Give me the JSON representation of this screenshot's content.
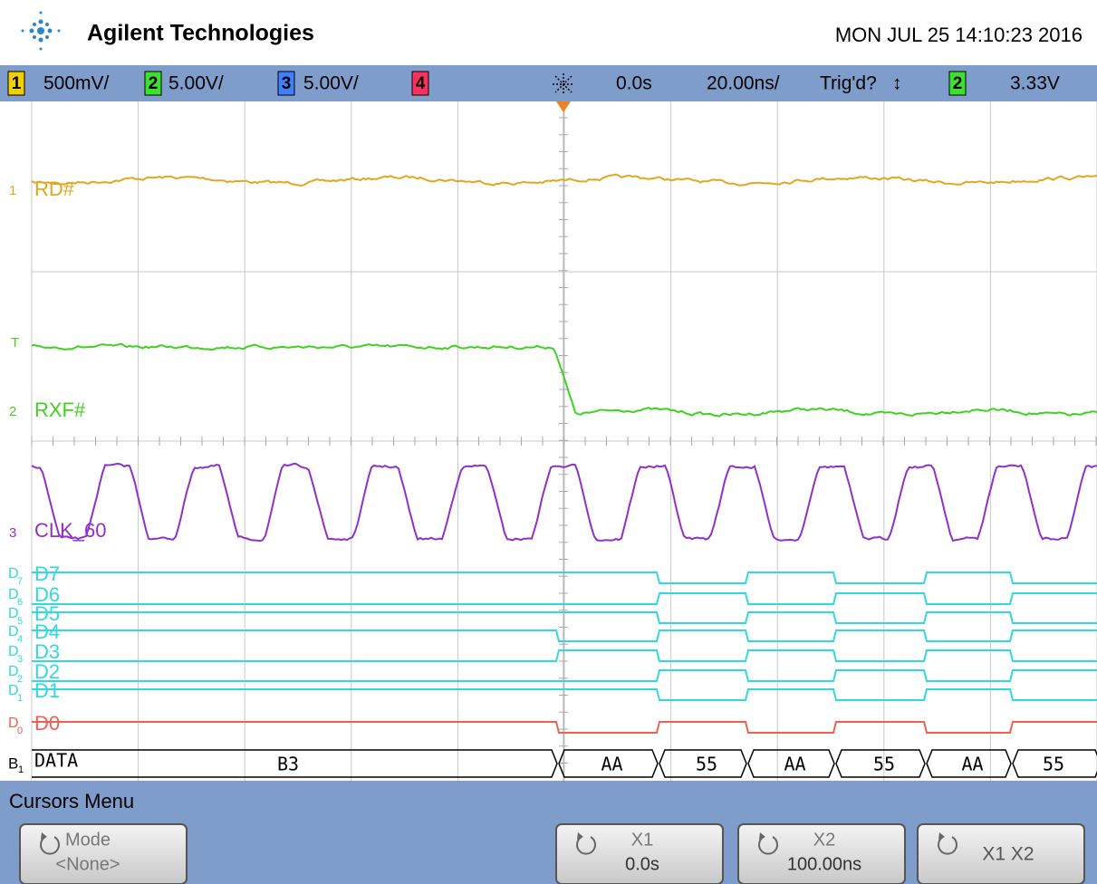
{
  "header": {
    "brand": "Agilent Technologies",
    "datetime": "MON JUL 25 14:10:23 2016"
  },
  "status_bar": {
    "ch1": "1",
    "ch1_scale": "500mV/",
    "ch2": "2",
    "ch2_scale": "5.00V/",
    "ch3": "3",
    "ch3_scale": "5.00V/",
    "ch4": "4",
    "time_offset": "0.0s",
    "time_scale": "20.00ns/",
    "trigger_status": "Trig'd?",
    "trigger_slope": "↕",
    "trigger_source": "2",
    "trigger_level": "3.33V"
  },
  "channels": {
    "rd": {
      "marker": "1",
      "label": "RD#"
    },
    "trig": "T",
    "rxf": {
      "marker": "2",
      "label": "RXF#"
    },
    "clk": {
      "marker": "3",
      "label": "CLK_60"
    }
  },
  "digital": {
    "lanes": [
      {
        "marker": "D",
        "sub": "7",
        "label": "D7"
      },
      {
        "marker": "D",
        "sub": "6",
        "label": "D6"
      },
      {
        "marker": "D",
        "sub": "5",
        "label": "D5"
      },
      {
        "marker": "D",
        "sub": "4",
        "label": "D4"
      },
      {
        "marker": "D",
        "sub": "3",
        "label": "D3"
      },
      {
        "marker": "D",
        "sub": "2",
        "label": "D2"
      },
      {
        "marker": "D",
        "sub": "1",
        "label": "D1"
      },
      {
        "marker": "D",
        "sub": "0",
        "label": "D0"
      }
    ]
  },
  "bus": {
    "marker": "B",
    "sub": "1",
    "label": "DATA",
    "values": [
      "B3",
      "AA",
      "55",
      "AA",
      "55",
      "AA",
      "55"
    ]
  },
  "menu": {
    "title": "Cursors Menu",
    "buttons": [
      {
        "label": "Mode",
        "value": "<None>"
      },
      {
        "label": "X1",
        "value": "0.0s"
      },
      {
        "label": "X2",
        "value": "100.00ns"
      },
      {
        "label": "X1 X2"
      }
    ]
  }
}
